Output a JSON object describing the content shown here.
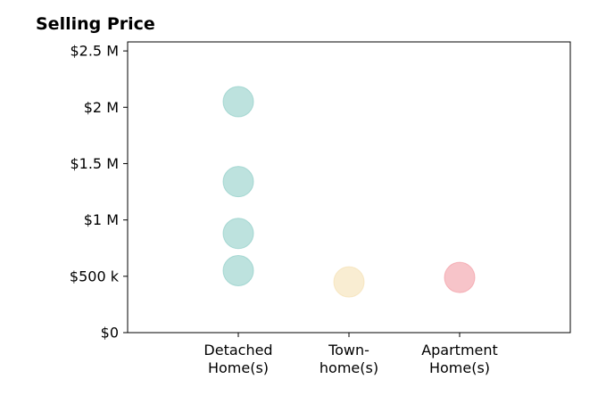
{
  "chart_data": {
    "type": "scatter",
    "title": "Selling Price",
    "xlabel": "",
    "ylabel": "",
    "categories": [
      [
        "Detached",
        "Home(s)"
      ],
      [
        "Town-",
        "home(s)"
      ],
      [
        "Apartment",
        "Home(s)"
      ]
    ],
    "yticks": [
      {
        "value": 0,
        "label": "$0"
      },
      {
        "value": 500000,
        "label": "$500 k"
      },
      {
        "value": 1000000,
        "label": "$1 M"
      },
      {
        "value": 1500000,
        "label": "$1.5 M"
      },
      {
        "value": 2000000,
        "label": "$2 M"
      },
      {
        "value": 2500000,
        "label": "$2.5 M"
      }
    ],
    "ylim": [
      0,
      2580000
    ],
    "points": [
      {
        "category": 0,
        "value": 550000,
        "color": "#7cc5bd"
      },
      {
        "category": 0,
        "value": 880000,
        "color": "#7cc5bd"
      },
      {
        "category": 0,
        "value": 1340000,
        "color": "#7cc5bd"
      },
      {
        "category": 0,
        "value": 2050000,
        "color": "#7cc5bd"
      },
      {
        "category": 1,
        "value": 450000,
        "color": "#f3dba5"
      },
      {
        "category": 2,
        "value": 490000,
        "color": "#f08a94"
      }
    ],
    "grid": false,
    "legend": "none"
  }
}
